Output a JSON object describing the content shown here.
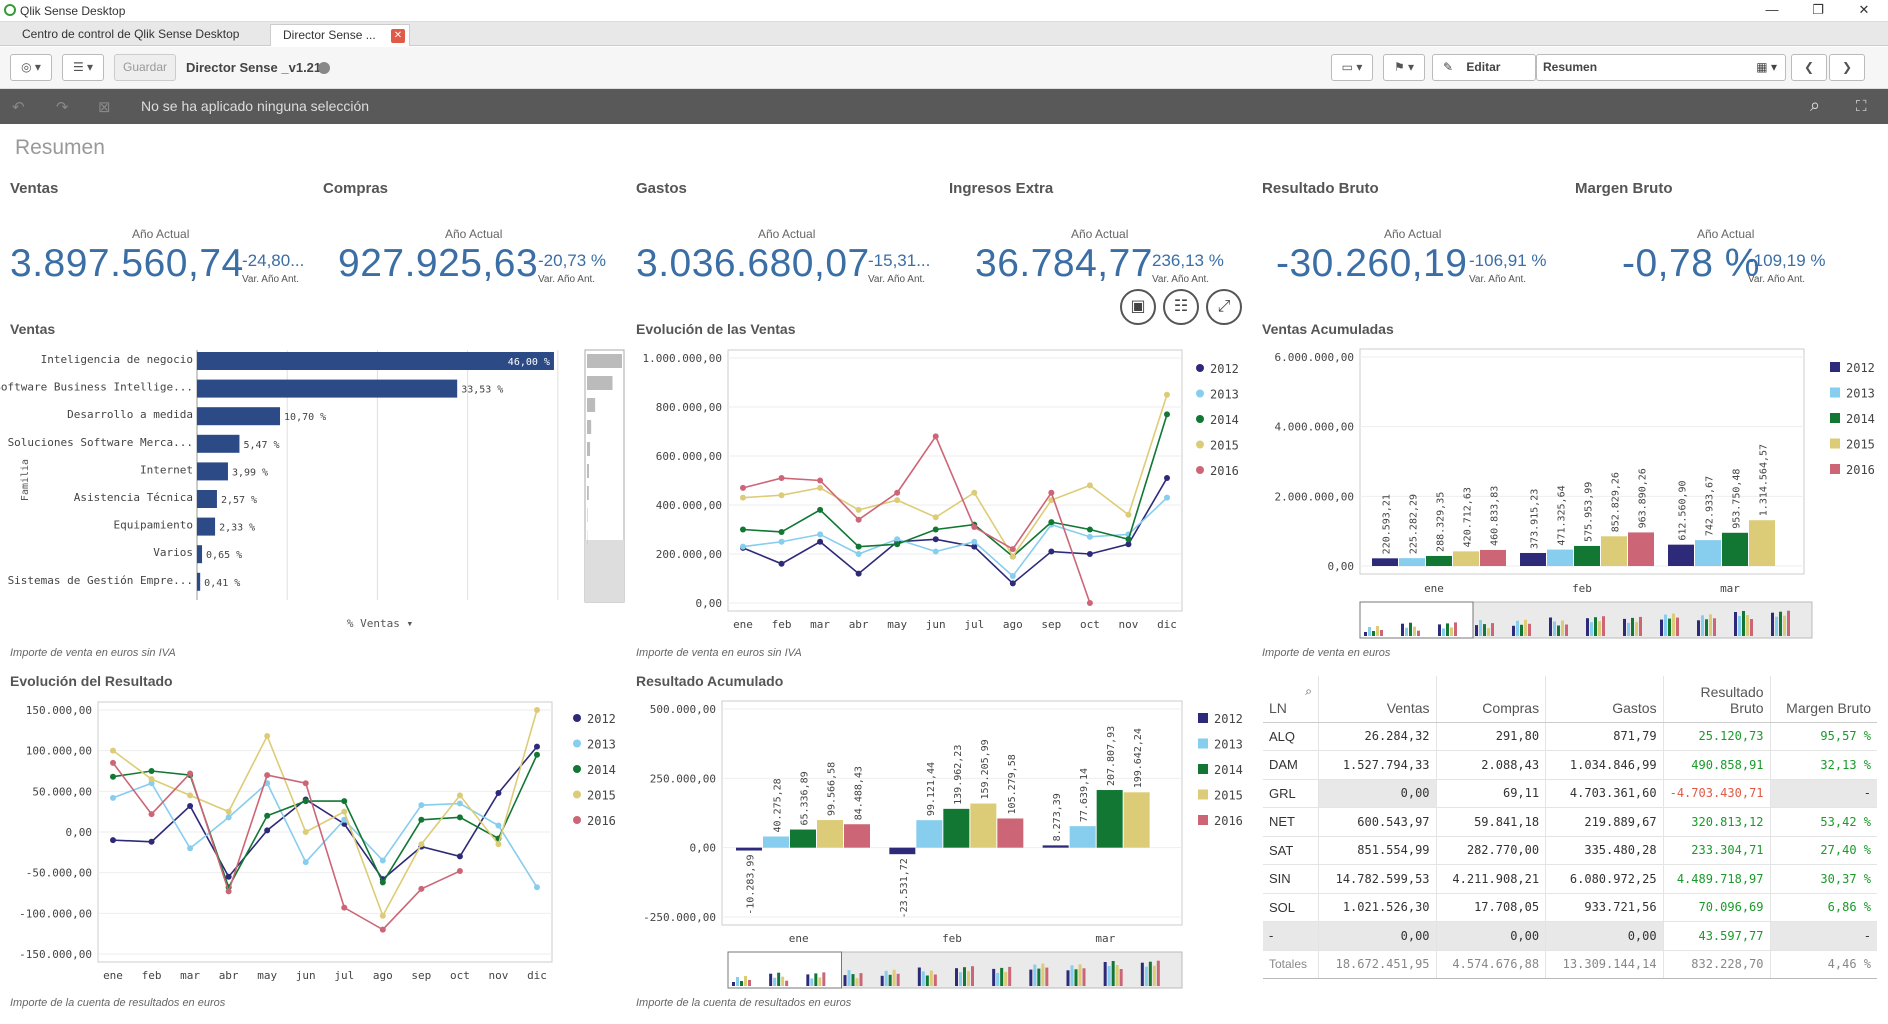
{
  "window": {
    "title": "Qlik Sense Desktop",
    "minimize": "—",
    "maximize": "❐",
    "close": "✕"
  },
  "tabs": [
    {
      "label": "Centro de control de Qlik Sense Desktop"
    },
    {
      "label": "Director Sense ..."
    }
  ],
  "toolbar": {
    "save_label": "Guardar",
    "app_name": "Director Sense _v1.21",
    "edit_label": "Editar",
    "sheet_label": "Resumen"
  },
  "selection_bar": {
    "message": "No se ha aplicado ninguna selección"
  },
  "sheet_title": "Resumen",
  "kpis": [
    {
      "title": "Ventas",
      "sub": "Año Actual",
      "value": "3.897.560,74",
      "var": "-24,80...",
      "var_label": "Var. Año Ant."
    },
    {
      "title": "Compras",
      "sub": "Año Actual",
      "value": "927.925,63",
      "var": "-20,73 %",
      "var_label": "Var. Año Ant."
    },
    {
      "title": "Gastos",
      "sub": "Año Actual",
      "value": "3.036.680,07",
      "var": "-15,31...",
      "var_label": "Var. Año Ant."
    },
    {
      "title": "Ingresos Extra",
      "sub": "Año Actual",
      "value": "36.784,77",
      "var": "236,13 %",
      "var_label": "Var. Año Ant."
    },
    {
      "title": "Resultado Bruto",
      "sub": "Año Actual",
      "value": "-30.260,19",
      "var": "-106,91 %",
      "var_label": "Var. Año Ant."
    },
    {
      "title": "Margen Bruto",
      "sub": "Año Actual",
      "value": "-0,78 %",
      "var": "-109,19 %",
      "var_label": "Var. Año Ant."
    }
  ],
  "colors": {
    "2012": "#2e2a7a",
    "2013": "#87cdee",
    "2014": "#117733",
    "2015": "#ddcc77",
    "2016": "#cc6677",
    "bar": "#2c4a86",
    "kpi": "#3a6ea5"
  },
  "ventas_chart": {
    "title": "Ventas",
    "footnote": "Importe de venta en euros sin IVA",
    "axis_label": "% Ventas",
    "dim_label": "Familia",
    "chart_data": {
      "type": "bar",
      "categories": [
        "Inteligencia de negocio",
        "Software Business Intellige...",
        "Desarrollo a medida",
        "Soluciones Software Merca...",
        "Internet",
        "Asistencia Técnica",
        "Equipamiento",
        "Varios",
        "Sistemas de Gestión Empre..."
      ],
      "values": [
        46.0,
        33.53,
        10.7,
        5.47,
        3.99,
        2.57,
        2.33,
        0.65,
        0.41
      ],
      "labels": [
        "46,00 %",
        "33,53 %",
        "10,70 %",
        "5,47 %",
        "3,99 %",
        "2,57 %",
        "2,33 %",
        "0,65 %",
        "0,41 %"
      ],
      "xlim": [
        0,
        50
      ]
    }
  },
  "evol_ventas": {
    "title": "Evolución de las Ventas",
    "footnote": "Importe de venta en euros sin IVA",
    "chart_data": {
      "type": "line",
      "x": [
        "ene",
        "feb",
        "mar",
        "abr",
        "may",
        "jun",
        "jul",
        "ago",
        "sep",
        "oct",
        "nov",
        "dic"
      ],
      "ylim": [
        0,
        1000000
      ],
      "yticks": [
        "0,00",
        "200.000,00",
        "400.000,00",
        "600.000,00",
        "800.000,00",
        "1.000.000,00"
      ],
      "series": [
        {
          "name": "2012",
          "values": [
            225000,
            160000,
            250000,
            120000,
            250000,
            260000,
            230000,
            80000,
            210000,
            200000,
            240000,
            510000
          ]
        },
        {
          "name": "2013",
          "values": [
            230000,
            250000,
            280000,
            200000,
            260000,
            210000,
            250000,
            110000,
            320000,
            270000,
            280000,
            430000
          ]
        },
        {
          "name": "2014",
          "values": [
            300000,
            290000,
            380000,
            230000,
            240000,
            300000,
            320000,
            190000,
            330000,
            300000,
            260000,
            770000
          ]
        },
        {
          "name": "2015",
          "values": [
            430000,
            440000,
            470000,
            380000,
            420000,
            350000,
            450000,
            190000,
            420000,
            480000,
            360000,
            850000
          ]
        },
        {
          "name": "2016",
          "values": [
            470000,
            510000,
            500000,
            340000,
            450000,
            680000,
            310000,
            220000,
            450000,
            0,
            null,
            null
          ]
        }
      ]
    }
  },
  "ventas_acum": {
    "title": "Ventas Acumuladas",
    "footnote": "Importe de venta en euros",
    "chart_data": {
      "type": "bar",
      "categories": [
        "ene",
        "feb",
        "mar"
      ],
      "ylim": [
        0,
        6000000
      ],
      "yticks": [
        "0,00",
        "2.000.000,00",
        "4.000.000,00",
        "6.000.000,00"
      ],
      "series": [
        {
          "name": "2012",
          "values": [
            220593.21,
            373915.23,
            612560.9
          ]
        },
        {
          "name": "2013",
          "values": [
            225282.29,
            471325.64,
            742933.67
          ]
        },
        {
          "name": "2014",
          "values": [
            288329.35,
            575953.99,
            953750.48
          ]
        },
        {
          "name": "2015",
          "values": [
            420712.63,
            852829.26,
            1314564.57
          ]
        },
        {
          "name": "2016",
          "values": [
            460833.83,
            963890.26,
            null
          ]
        }
      ],
      "labels": [
        [
          "220.593,21",
          "373.915,23",
          "612.560,90"
        ],
        [
          "225.282,29",
          "471.325,64",
          "742.933,67"
        ],
        [
          "288.329,35",
          "575.953,99",
          "953.750,48"
        ],
        [
          "420.712,63",
          "852.829,26",
          "1.314.564,57"
        ],
        [
          "460.833,83",
          "963.890,26",
          ""
        ]
      ]
    }
  },
  "evol_resultado": {
    "title": "Evolución del Resultado",
    "footnote": "Importe de la cuenta de resultados en euros",
    "chart_data": {
      "type": "line",
      "x": [
        "ene",
        "feb",
        "mar",
        "abr",
        "may",
        "jun",
        "jul",
        "ago",
        "sep",
        "oct",
        "nov",
        "dic"
      ],
      "ylim": [
        -150000,
        150000
      ],
      "yticks": [
        "-150.000,00",
        "-100.000,00",
        "-50.000,00",
        "0,00",
        "50.000,00",
        "100.000,00",
        "150.000,00"
      ],
      "series": [
        {
          "name": "2012",
          "values": [
            -10000,
            -12000,
            32000,
            -55000,
            2000,
            40000,
            10000,
            -58000,
            -18000,
            -30000,
            48000,
            105000
          ]
        },
        {
          "name": "2013",
          "values": [
            42000,
            60000,
            -20000,
            18000,
            60000,
            -37000,
            15000,
            -35000,
            33000,
            35000,
            8000,
            -68000
          ]
        },
        {
          "name": "2014",
          "values": [
            68000,
            75000,
            70000,
            -68000,
            20000,
            38000,
            38000,
            -62000,
            15000,
            18000,
            -8000,
            95000
          ]
        },
        {
          "name": "2015",
          "values": [
            100000,
            65000,
            45000,
            25000,
            118000,
            0,
            25000,
            -103000,
            -15000,
            45000,
            -15000,
            150000
          ]
        },
        {
          "name": "2016",
          "values": [
            85000,
            22000,
            72000,
            -73000,
            70000,
            60000,
            -93000,
            -120000,
            -70000,
            -48000,
            null,
            null
          ]
        }
      ]
    }
  },
  "resultado_acum": {
    "title": "Resultado Acumulado",
    "footnote": "Importe de la cuenta de resultados en euros",
    "chart_data": {
      "type": "bar",
      "categories": [
        "ene",
        "feb",
        "mar"
      ],
      "ylim": [
        -250000,
        500000
      ],
      "yticks": [
        "-250.000,00",
        "0,00",
        "250.000,00",
        "500.000,00"
      ],
      "series": [
        {
          "name": "2012",
          "values": [
            -10283.99,
            -23531.72,
            8273.39
          ]
        },
        {
          "name": "2013",
          "values": [
            40275.28,
            99121.44,
            77639.14
          ]
        },
        {
          "name": "2014",
          "values": [
            65336.89,
            139962.23,
            207807.93
          ]
        },
        {
          "name": "2015",
          "values": [
            99566.58,
            159205.99,
            199642.24
          ]
        },
        {
          "name": "2016",
          "values": [
            84488.43,
            105279.58,
            null
          ]
        }
      ],
      "labels": [
        [
          "-10.283,99",
          "-23.531,72",
          "8.273,39"
        ],
        [
          "40.275,28",
          "99.121,44",
          "77.639,14"
        ],
        [
          "65.336,89",
          "139.962,23",
          "207.807,93"
        ],
        [
          "99.566,58",
          "159.205,99",
          "199.642,24"
        ],
        [
          "84.488,43",
          "105.279,58",
          ""
        ]
      ]
    }
  },
  "table": {
    "headers": [
      "LN",
      "Ventas",
      "Compras",
      "Gastos",
      "Resultado Bruto",
      "Margen Bruto"
    ],
    "rows": [
      [
        "ALQ",
        "26.284,32",
        "291,80",
        "871,79",
        "25.120,73",
        "95,57 %"
      ],
      [
        "DAM",
        "1.527.794,33",
        "2.088,43",
        "1.034.846,99",
        "490.858,91",
        "32,13 %"
      ],
      [
        "GRL",
        "0,00",
        "69,11",
        "4.703.361,60",
        "-4.703.430,71",
        "-"
      ],
      [
        "NET",
        "600.543,97",
        "59.841,18",
        "219.889,67",
        "320.813,12",
        "53,42 %"
      ],
      [
        "SAT",
        "851.554,99",
        "282.770,00",
        "335.480,28",
        "233.304,71",
        "27,40 %"
      ],
      [
        "SIN",
        "14.782.599,53",
        "4.211.908,21",
        "6.080.972,25",
        "4.489.718,97",
        "30,37 %"
      ],
      [
        "SOL",
        "1.021.526,30",
        "17.708,05",
        "933.721,56",
        "70.096,69",
        "6,86 %"
      ],
      [
        "-",
        "0,00",
        "0,00",
        "0,00",
        "43.597,77",
        "-"
      ]
    ],
    "totals": [
      "Totales",
      "18.672.451,95",
      "4.574.676,88",
      "13.309.144,14",
      "832.228,70",
      "4,46 %"
    ]
  }
}
